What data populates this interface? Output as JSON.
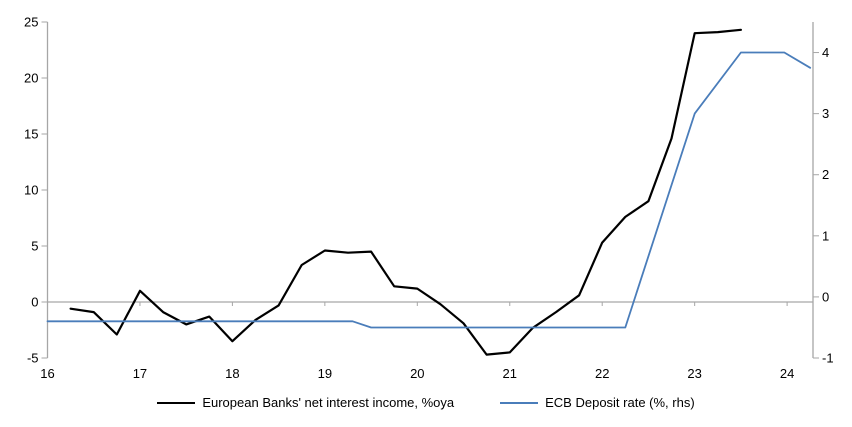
{
  "page": {
    "background": "#ffffff"
  },
  "chart_data": {
    "type": "line",
    "title": "",
    "xlabel": "",
    "ylabel_left": "",
    "ylabel_right": "",
    "grid": "zero-line-only",
    "axis_color": "#a6a6a6",
    "text_color": "#000000",
    "x_axis": {
      "ticks": [
        16,
        17,
        18,
        19,
        20,
        21,
        22,
        23,
        24
      ],
      "range": [
        16,
        24.28
      ]
    },
    "y_axis_left": {
      "ticks": [
        -5,
        0,
        5,
        10,
        15,
        20,
        25
      ],
      "range": [
        -5,
        25
      ]
    },
    "y_axis_right": {
      "ticks": [
        -1,
        0,
        1,
        2,
        3,
        4
      ],
      "range": [
        -1,
        4.5
      ]
    },
    "series": [
      {
        "name": "European Banks' net interest income, %oya",
        "axis": "left",
        "color": "#000000",
        "width": 2.2,
        "points": [
          [
            16.25,
            -0.6
          ],
          [
            16.5,
            -0.9
          ],
          [
            16.75,
            -2.9
          ],
          [
            17.0,
            1.0
          ],
          [
            17.25,
            -0.9
          ],
          [
            17.5,
            -2.0
          ],
          [
            17.75,
            -1.3
          ],
          [
            18.0,
            -3.5
          ],
          [
            18.25,
            -1.6
          ],
          [
            18.5,
            -0.3
          ],
          [
            18.75,
            3.3
          ],
          [
            19.0,
            4.6
          ],
          [
            19.25,
            4.4
          ],
          [
            19.5,
            4.5
          ],
          [
            19.75,
            1.4
          ],
          [
            20.0,
            1.2
          ],
          [
            20.25,
            -0.2
          ],
          [
            20.5,
            -1.9
          ],
          [
            20.75,
            -4.7
          ],
          [
            21.0,
            -4.5
          ],
          [
            21.25,
            -2.3
          ],
          [
            21.5,
            -0.9
          ],
          [
            21.75,
            0.6
          ],
          [
            22.0,
            5.3
          ],
          [
            22.25,
            7.6
          ],
          [
            22.5,
            9.0
          ],
          [
            22.75,
            14.6
          ],
          [
            23.0,
            24.0
          ],
          [
            23.25,
            24.1
          ],
          [
            23.5,
            24.3
          ]
        ]
      },
      {
        "name": "ECB Deposit rate (%, rhs)",
        "axis": "right",
        "color": "#4a7dba",
        "width": 1.8,
        "points": [
          [
            16.0,
            -0.4
          ],
          [
            19.3,
            -0.4
          ],
          [
            19.5,
            -0.5
          ],
          [
            22.25,
            -0.5
          ],
          [
            23.0,
            3.0
          ],
          [
            23.5,
            4.0
          ],
          [
            23.97,
            4.0
          ],
          [
            24.25,
            3.75
          ]
        ]
      }
    ],
    "legend": {
      "position": "bottom-center",
      "items": [
        {
          "label": "European Banks' net interest income, %oya"
        },
        {
          "label": "ECB Deposit rate (%, rhs)"
        }
      ]
    }
  }
}
